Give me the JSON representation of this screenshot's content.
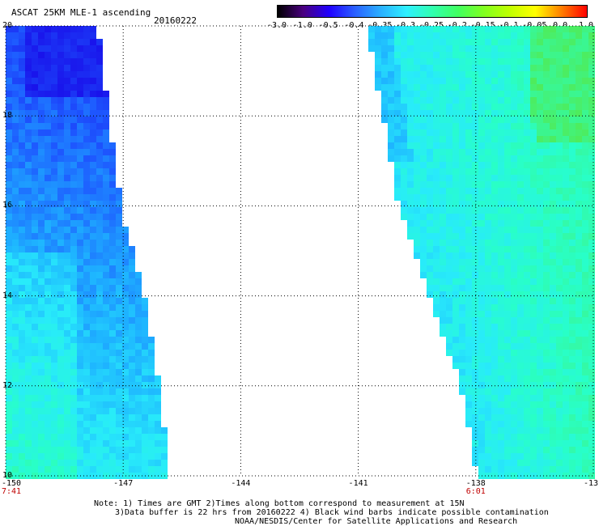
{
  "header": {
    "title": "ASCAT 25KM MLE-1 ascending",
    "date": "20160222"
  },
  "colorbar": {
    "labels": [
      "-3.0",
      "-1.0",
      "-0.5",
      "-0.4",
      "-0.35",
      "-0.3",
      "-0.25",
      "-0.2",
      "-0.15",
      "-0.1",
      "-0.05",
      "0.0",
      "1.0"
    ],
    "colors": [
      "#000000",
      "#4a0080",
      "#2000ff",
      "#2a60ff",
      "#2ab0ff",
      "#2ef0ff",
      "#30ffb0",
      "#40ff60",
      "#80ff20",
      "#c0ff00",
      "#ffff00",
      "#ff8000",
      "#ff0000"
    ]
  },
  "axes": {
    "y_ticks": [
      "20",
      "18",
      "16",
      "14",
      "12",
      "10"
    ],
    "x_ticks": [
      "-150",
      "-147",
      "-144",
      "-141",
      "-138",
      "-13"
    ],
    "time_labels": [
      "7:41",
      "6:01"
    ]
  },
  "notes": {
    "line1": "Note: 1) Times are GMT 2)Times along bottom correspond to measurement at 15N",
    "line2": "3)Data buffer is 22 hrs from 20160222 4) Black wind barbs indicate possible contamination",
    "line3": "NOAA/NESDIS/Center for Satellite Applications and Research"
  },
  "map_data": {
    "lon_range": [
      -150,
      -135
    ],
    "lat_range": [
      10,
      20
    ],
    "left_swath": {
      "west_lon": -150,
      "east_edge_lon_at_lat": [
        [
          20,
          -147.6
        ],
        [
          18,
          -147.3
        ],
        [
          16,
          -147.0
        ],
        [
          14,
          -146.4
        ],
        [
          12,
          -146.0
        ],
        [
          10,
          -145.8
        ]
      ],
      "dominant_values": "mostly -0.4 to -0.3 (blue), -0.5 near 19-20N, -0.25 in south"
    },
    "right_swath": {
      "west_edge_lon_at_lat": [
        [
          20,
          -140.8
        ],
        [
          18,
          -140.4
        ],
        [
          16,
          -140.0
        ],
        [
          14,
          -139.2
        ],
        [
          12,
          -138.4
        ],
        [
          10,
          -138.0
        ]
      ],
      "east_lon": -135,
      "dominant_values": "mostly -0.3 to -0.25 (cyan), -0.2 to -0.15 near 19N east edge"
    }
  }
}
